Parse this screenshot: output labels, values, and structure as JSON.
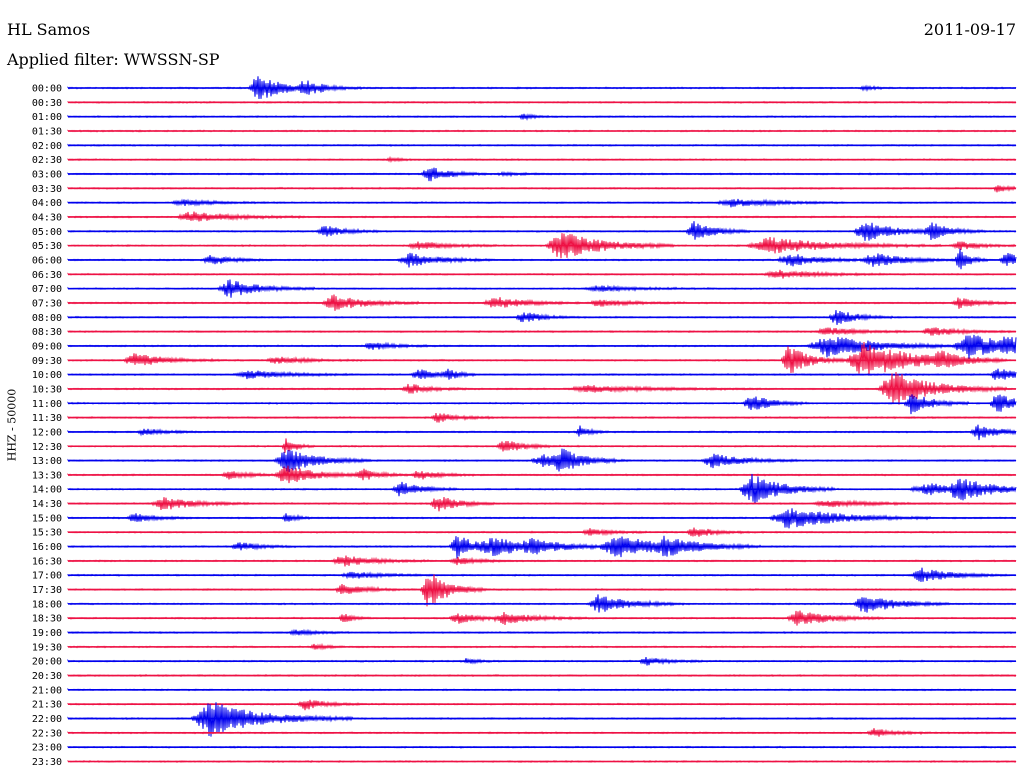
{
  "header": {
    "station": "HL Samos",
    "date": "2011-09-17",
    "filter_label": "Applied filter: WWSSN-SP"
  },
  "chart_data": {
    "type": "line",
    "title": "HL Samos",
    "date": "2011-09-17",
    "ylabel": "HHZ - 50000",
    "row_labels": [
      "00:00",
      "00:30",
      "01:00",
      "01:30",
      "02:00",
      "02:30",
      "03:00",
      "03:30",
      "04:00",
      "04:30",
      "05:00",
      "05:30",
      "06:00",
      "06:30",
      "07:00",
      "07:30",
      "08:00",
      "08:30",
      "09:00",
      "09:30",
      "10:00",
      "10:30",
      "11:00",
      "11:30",
      "12:00",
      "12:30",
      "13:00",
      "13:30",
      "14:00",
      "14:30",
      "15:00",
      "15:30",
      "16:00",
      "16:30",
      "17:00",
      "17:30",
      "18:00",
      "18:30",
      "19:00",
      "19:30",
      "20:00",
      "20:30",
      "21:00",
      "21:30",
      "22:00",
      "22:30",
      "23:00",
      "23:30"
    ],
    "colors": [
      "#0000ee",
      "#ee1144"
    ],
    "events": [
      {
        "row": 0,
        "x": 0.2,
        "amp": 2.0,
        "len": 0.025
      },
      {
        "row": 0,
        "x": 0.25,
        "amp": 1.0,
        "len": 0.02
      },
      {
        "row": 0,
        "x": 0.84,
        "amp": 0.3,
        "len": 0.01
      },
      {
        "row": 2,
        "x": 0.48,
        "amp": 0.4,
        "len": 0.01
      },
      {
        "row": 5,
        "x": 0.34,
        "amp": 0.3,
        "len": 0.01
      },
      {
        "row": 6,
        "x": 0.38,
        "amp": 1.2,
        "len": 0.02
      },
      {
        "row": 6,
        "x": 0.46,
        "amp": 0.2,
        "len": 0.02
      },
      {
        "row": 7,
        "x": 0.98,
        "amp": 0.6,
        "len": 0.01
      },
      {
        "row": 8,
        "x": 0.12,
        "amp": 0.4,
        "len": 0.03
      },
      {
        "row": 8,
        "x": 0.7,
        "amp": 0.6,
        "len": 0.04
      },
      {
        "row": 9,
        "x": 0.13,
        "amp": 0.8,
        "len": 0.04
      },
      {
        "row": 10,
        "x": 0.27,
        "amp": 0.9,
        "len": 0.02
      },
      {
        "row": 10,
        "x": 0.66,
        "amp": 1.5,
        "len": 0.02
      },
      {
        "row": 10,
        "x": 0.84,
        "amp": 1.5,
        "len": 0.03
      },
      {
        "row": 10,
        "x": 0.91,
        "amp": 1.2,
        "len": 0.02
      },
      {
        "row": 11,
        "x": 0.37,
        "amp": 0.6,
        "len": 0.03
      },
      {
        "row": 11,
        "x": 0.52,
        "amp": 2.2,
        "len": 0.04
      },
      {
        "row": 11,
        "x": 0.74,
        "amp": 1.2,
        "len": 0.06
      },
      {
        "row": 11,
        "x": 0.94,
        "amp": 0.6,
        "len": 0.02
      },
      {
        "row": 12,
        "x": 0.15,
        "amp": 0.8,
        "len": 0.02
      },
      {
        "row": 12,
        "x": 0.36,
        "amp": 1.0,
        "len": 0.03
      },
      {
        "row": 12,
        "x": 0.76,
        "amp": 1.0,
        "len": 0.03
      },
      {
        "row": 12,
        "x": 0.85,
        "amp": 1.0,
        "len": 0.03
      },
      {
        "row": 12,
        "x": 0.94,
        "amp": 2.0,
        "len": 0.01
      },
      {
        "row": 12,
        "x": 0.99,
        "amp": 1.0,
        "len": 0.02
      },
      {
        "row": 13,
        "x": 0.75,
        "amp": 0.6,
        "len": 0.04
      },
      {
        "row": 14,
        "x": 0.17,
        "amp": 1.3,
        "len": 0.03
      },
      {
        "row": 14,
        "x": 0.56,
        "amp": 0.4,
        "len": 0.04
      },
      {
        "row": 15,
        "x": 0.28,
        "amp": 1.2,
        "len": 0.03
      },
      {
        "row": 15,
        "x": 0.45,
        "amp": 0.9,
        "len": 0.03
      },
      {
        "row": 15,
        "x": 0.56,
        "amp": 0.5,
        "len": 0.03
      },
      {
        "row": 15,
        "x": 0.94,
        "amp": 0.8,
        "len": 0.02
      },
      {
        "row": 16,
        "x": 0.48,
        "amp": 0.8,
        "len": 0.02
      },
      {
        "row": 16,
        "x": 0.81,
        "amp": 1.2,
        "len": 0.02
      },
      {
        "row": 17,
        "x": 0.8,
        "amp": 0.6,
        "len": 0.03
      },
      {
        "row": 17,
        "x": 0.91,
        "amp": 0.6,
        "len": 0.03
      },
      {
        "row": 18,
        "x": 0.32,
        "amp": 0.6,
        "len": 0.02
      },
      {
        "row": 18,
        "x": 0.8,
        "amp": 1.6,
        "len": 0.05
      },
      {
        "row": 18,
        "x": 0.95,
        "amp": 1.8,
        "len": 0.04
      },
      {
        "row": 18,
        "x": 0.99,
        "amp": 1.2,
        "len": 0.02
      },
      {
        "row": 19,
        "x": 0.07,
        "amp": 1.0,
        "len": 0.03
      },
      {
        "row": 19,
        "x": 0.22,
        "amp": 0.5,
        "len": 0.03
      },
      {
        "row": 19,
        "x": 0.76,
        "amp": 2.2,
        "len": 0.02
      },
      {
        "row": 19,
        "x": 0.84,
        "amp": 2.6,
        "len": 0.05
      },
      {
        "row": 19,
        "x": 0.92,
        "amp": 1.0,
        "len": 0.02
      },
      {
        "row": 20,
        "x": 0.19,
        "amp": 0.6,
        "len": 0.04
      },
      {
        "row": 20,
        "x": 0.37,
        "amp": 0.8,
        "len": 0.02
      },
      {
        "row": 20,
        "x": 0.4,
        "amp": 0.8,
        "len": 0.01
      },
      {
        "row": 20,
        "x": 0.98,
        "amp": 1.0,
        "len": 0.02
      },
      {
        "row": 21,
        "x": 0.36,
        "amp": 0.8,
        "len": 0.02
      },
      {
        "row": 21,
        "x": 0.55,
        "amp": 0.5,
        "len": 0.06
      },
      {
        "row": 21,
        "x": 0.87,
        "amp": 2.6,
        "len": 0.04
      },
      {
        "row": 22,
        "x": 0.72,
        "amp": 1.3,
        "len": 0.02
      },
      {
        "row": 22,
        "x": 0.89,
        "amp": 1.6,
        "len": 0.02
      },
      {
        "row": 22,
        "x": 0.98,
        "amp": 1.5,
        "len": 0.02
      },
      {
        "row": 23,
        "x": 0.39,
        "amp": 0.7,
        "len": 0.02
      },
      {
        "row": 24,
        "x": 0.08,
        "amp": 0.5,
        "len": 0.02
      },
      {
        "row": 24,
        "x": 0.54,
        "amp": 0.8,
        "len": 0.01
      },
      {
        "row": 24,
        "x": 0.96,
        "amp": 1.2,
        "len": 0.02
      },
      {
        "row": 25,
        "x": 0.23,
        "amp": 1.2,
        "len": 0.01
      },
      {
        "row": 25,
        "x": 0.46,
        "amp": 1.0,
        "len": 0.02
      },
      {
        "row": 26,
        "x": 0.23,
        "amp": 1.8,
        "len": 0.03
      },
      {
        "row": 26,
        "x": 0.5,
        "amp": 0.9,
        "len": 0.03
      },
      {
        "row": 26,
        "x": 0.52,
        "amp": 1.6,
        "len": 0.02
      },
      {
        "row": 26,
        "x": 0.68,
        "amp": 1.0,
        "len": 0.03
      },
      {
        "row": 27,
        "x": 0.17,
        "amp": 0.6,
        "len": 0.02
      },
      {
        "row": 27,
        "x": 0.23,
        "amp": 1.4,
        "len": 0.03
      },
      {
        "row": 27,
        "x": 0.31,
        "amp": 0.8,
        "len": 0.02
      },
      {
        "row": 27,
        "x": 0.37,
        "amp": 0.7,
        "len": 0.02
      },
      {
        "row": 28,
        "x": 0.35,
        "amp": 1.2,
        "len": 0.02
      },
      {
        "row": 28,
        "x": 0.72,
        "amp": 2.4,
        "len": 0.03
      },
      {
        "row": 28,
        "x": 0.91,
        "amp": 0.8,
        "len": 0.06
      },
      {
        "row": 28,
        "x": 0.94,
        "amp": 1.2,
        "len": 0.03
      },
      {
        "row": 29,
        "x": 0.1,
        "amp": 1.0,
        "len": 0.03
      },
      {
        "row": 29,
        "x": 0.39,
        "amp": 1.2,
        "len": 0.02
      },
      {
        "row": 29,
        "x": 0.8,
        "amp": 0.5,
        "len": 0.04
      },
      {
        "row": 30,
        "x": 0.07,
        "amp": 0.7,
        "len": 0.02
      },
      {
        "row": 30,
        "x": 0.23,
        "amp": 0.7,
        "len": 0.01
      },
      {
        "row": 30,
        "x": 0.76,
        "amp": 1.6,
        "len": 0.05
      },
      {
        "row": 31,
        "x": 0.55,
        "amp": 0.5,
        "len": 0.02
      },
      {
        "row": 31,
        "x": 0.66,
        "amp": 0.8,
        "len": 0.02
      },
      {
        "row": 32,
        "x": 0.18,
        "amp": 0.6,
        "len": 0.02
      },
      {
        "row": 32,
        "x": 0.41,
        "amp": 1.8,
        "len": 0.02
      },
      {
        "row": 32,
        "x": 0.45,
        "amp": 1.2,
        "len": 0.04
      },
      {
        "row": 32,
        "x": 0.49,
        "amp": 0.8,
        "len": 0.03
      },
      {
        "row": 32,
        "x": 0.58,
        "amp": 1.6,
        "len": 0.05
      },
      {
        "row": 32,
        "x": 0.63,
        "amp": 1.0,
        "len": 0.03
      },
      {
        "row": 33,
        "x": 0.29,
        "amp": 0.8,
        "len": 0.03
      },
      {
        "row": 33,
        "x": 0.41,
        "amp": 0.6,
        "len": 0.02
      },
      {
        "row": 34,
        "x": 0.3,
        "amp": 0.5,
        "len": 0.03
      },
      {
        "row": 34,
        "x": 0.9,
        "amp": 1.0,
        "len": 0.03
      },
      {
        "row": 35,
        "x": 0.29,
        "amp": 1.0,
        "len": 0.02
      },
      {
        "row": 35,
        "x": 0.38,
        "amp": 2.8,
        "len": 0.02
      },
      {
        "row": 36,
        "x": 0.56,
        "amp": 1.4,
        "len": 0.03
      },
      {
        "row": 36,
        "x": 0.84,
        "amp": 1.5,
        "len": 0.03
      },
      {
        "row": 37,
        "x": 0.29,
        "amp": 0.7,
        "len": 0.01
      },
      {
        "row": 37,
        "x": 0.41,
        "amp": 0.8,
        "len": 0.02
      },
      {
        "row": 37,
        "x": 0.46,
        "amp": 0.9,
        "len": 0.03
      },
      {
        "row": 37,
        "x": 0.77,
        "amp": 1.2,
        "len": 0.03
      },
      {
        "row": 38,
        "x": 0.24,
        "amp": 0.4,
        "len": 0.02
      },
      {
        "row": 39,
        "x": 0.26,
        "amp": 0.5,
        "len": 0.01
      },
      {
        "row": 40,
        "x": 0.42,
        "amp": 0.4,
        "len": 0.01
      },
      {
        "row": 40,
        "x": 0.61,
        "amp": 0.6,
        "len": 0.02
      },
      {
        "row": 43,
        "x": 0.25,
        "amp": 0.8,
        "len": 0.02
      },
      {
        "row": 44,
        "x": 0.15,
        "amp": 2.6,
        "len": 0.05
      },
      {
        "row": 45,
        "x": 0.85,
        "amp": 0.6,
        "len": 0.02
      }
    ]
  }
}
